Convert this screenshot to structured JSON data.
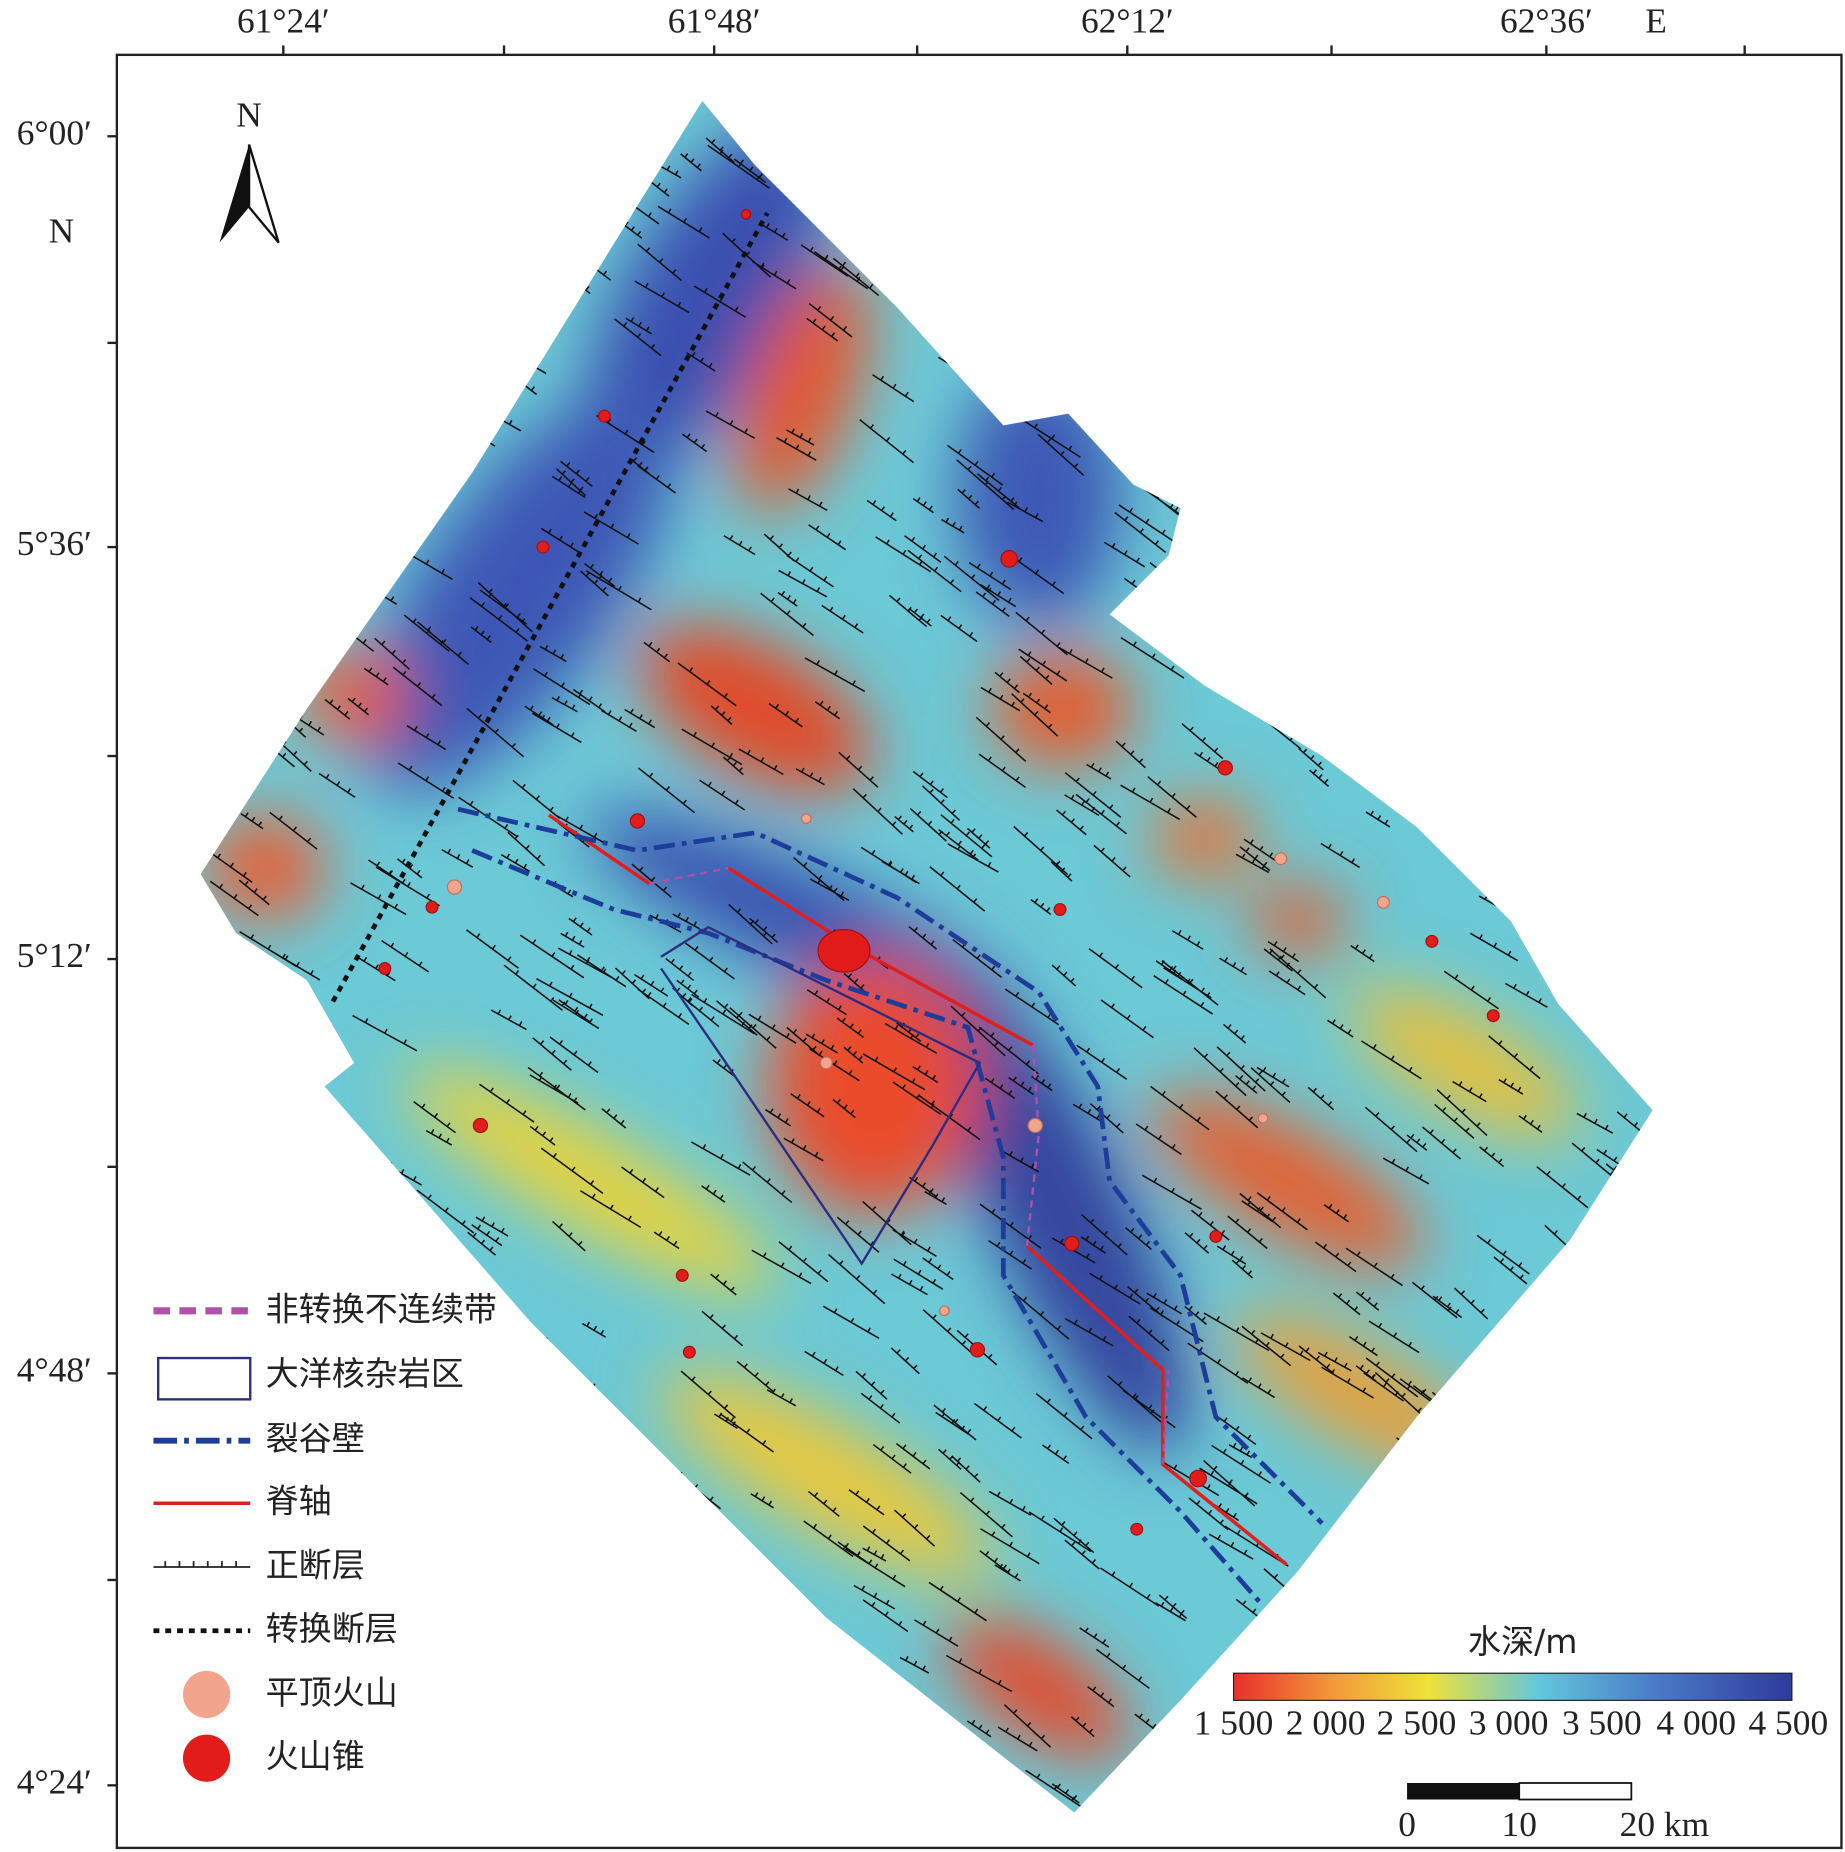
{
  "axes": {
    "top": {
      "ticks": [
        "61°24′",
        "61°48′",
        "62°12′",
        "62°36′"
      ],
      "unit": "E"
    },
    "left": {
      "ticks": [
        "6°00′",
        "5°36′",
        "5°12′",
        "4°48′",
        "4°24′"
      ],
      "unit": "N"
    }
  },
  "north_arrow": "N",
  "legend": {
    "items": [
      "非转换不连续带",
      "大洋核杂岩区",
      "裂谷壁",
      "脊轴",
      "正断层",
      "转换断层",
      "平顶火山",
      "火山锥"
    ]
  },
  "colorbar": {
    "title": "水深/m",
    "ticks": [
      "1 500",
      "2 000",
      "2 500",
      "3 000",
      "3 500",
      "4 000",
      "4 500"
    ]
  },
  "scale_bar": {
    "ticks": [
      "0",
      "10",
      "20 km"
    ]
  }
}
